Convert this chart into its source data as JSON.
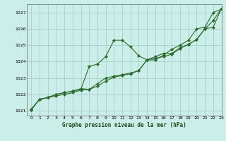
{
  "title": "Graphe pression niveau de la mer (hPa)",
  "bg_color": "#cceee8",
  "grid_color": "#aad4ce",
  "line_color": "#2d6a2d",
  "marker_color": "#2d6a2d",
  "xlim": [
    -0.5,
    23
  ],
  "ylim": [
    1020.7,
    1027.5
  ],
  "yticks": [
    1021,
    1022,
    1023,
    1024,
    1025,
    1026,
    1027
  ],
  "xticks": [
    0,
    1,
    2,
    3,
    4,
    5,
    6,
    7,
    8,
    9,
    10,
    11,
    12,
    13,
    14,
    15,
    16,
    17,
    18,
    19,
    20,
    21,
    22,
    23
  ],
  "line1_x": [
    0,
    1,
    2,
    3,
    4,
    5,
    6,
    7,
    8,
    9,
    10,
    11,
    12,
    13,
    14,
    15,
    16,
    17,
    18,
    19,
    20,
    21,
    22,
    23
  ],
  "line1_y": [
    1021.1,
    1021.7,
    1021.8,
    1022.0,
    1022.1,
    1022.2,
    1022.3,
    1023.7,
    1023.85,
    1024.3,
    1025.3,
    1025.3,
    1024.9,
    1024.35,
    1024.1,
    1024.1,
    1024.4,
    1024.75,
    1025.0,
    1025.3,
    1026.0,
    1026.1,
    1027.0,
    1027.2
  ],
  "line2_x": [
    0,
    1,
    2,
    3,
    4,
    5,
    6,
    7,
    8,
    9,
    10,
    11,
    12,
    13,
    14,
    15,
    16,
    17,
    18,
    19,
    20,
    21,
    22,
    23
  ],
  "line2_y": [
    1021.05,
    1021.7,
    1021.8,
    1021.9,
    1022.0,
    1022.1,
    1022.25,
    1022.3,
    1022.5,
    1022.8,
    1023.05,
    1023.15,
    1023.25,
    1023.45,
    1024.1,
    1024.2,
    1024.3,
    1024.45,
    1024.8,
    1025.05,
    1025.35,
    1026.0,
    1026.5,
    1027.25
  ],
  "line3_x": [
    0,
    1,
    2,
    3,
    4,
    5,
    6,
    7,
    8,
    9,
    10,
    11,
    12,
    13,
    14,
    15,
    16,
    17,
    18,
    19,
    20,
    21,
    22,
    23
  ],
  "line3_y": [
    1021.05,
    1021.7,
    1021.8,
    1022.0,
    1022.1,
    1022.2,
    1022.35,
    1022.3,
    1022.65,
    1023.0,
    1023.1,
    1023.2,
    1023.3,
    1023.45,
    1024.1,
    1024.3,
    1024.5,
    1024.5,
    1024.85,
    1025.05,
    1025.35,
    1026.0,
    1026.1,
    1027.25
  ]
}
